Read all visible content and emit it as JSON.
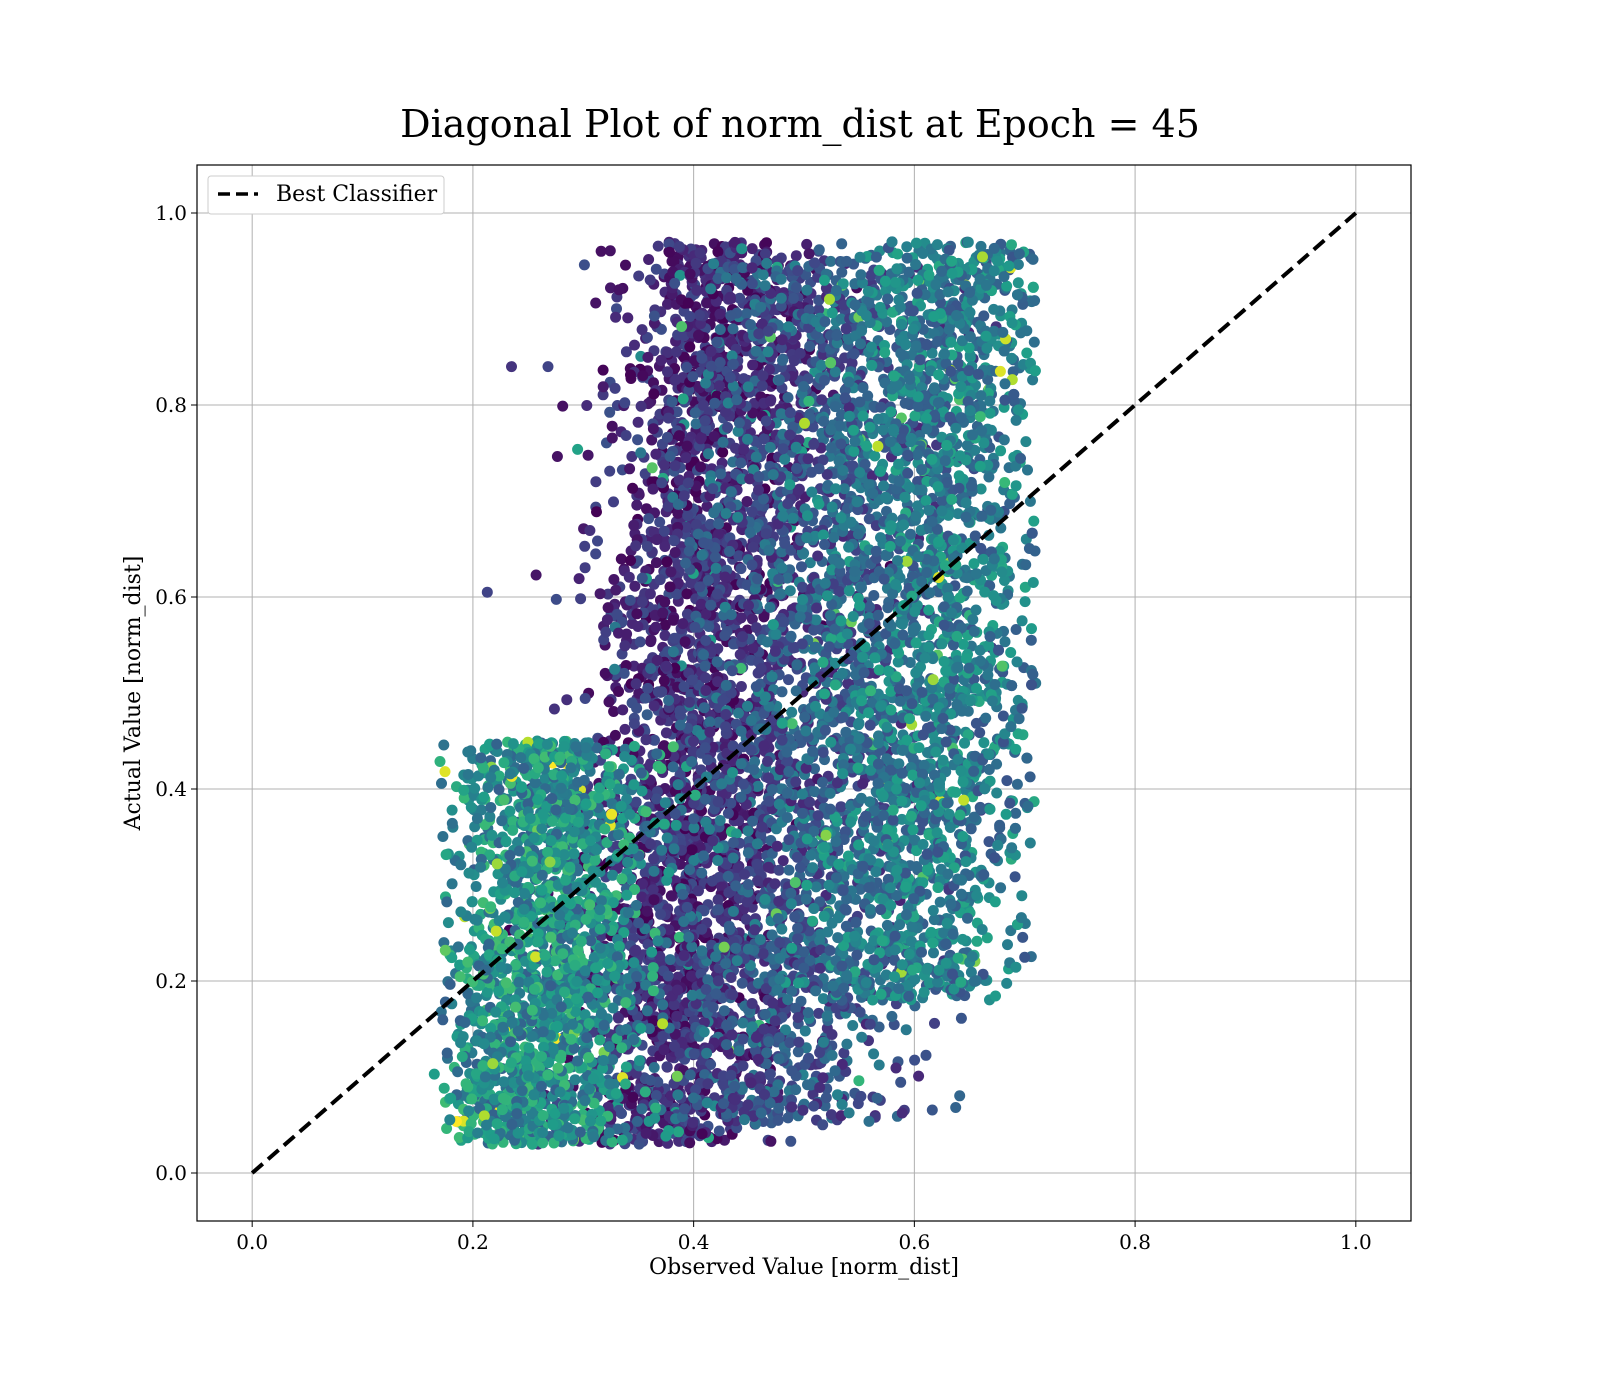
{
  "chart_data": {
    "type": "scatter",
    "title": "Diagonal Plot of norm_dist at Epoch = 45",
    "xlabel": "Observed Value [norm_dist]",
    "ylabel": "Actual Value [norm_dist]",
    "xlim": [
      -0.05,
      1.05
    ],
    "ylim": [
      -0.05,
      1.05
    ],
    "xticks": [
      "0.0",
      "0.2",
      "0.4",
      "0.6",
      "0.8",
      "1.0"
    ],
    "yticks": [
      "0.0",
      "0.2",
      "0.4",
      "0.6",
      "0.8",
      "1.0"
    ],
    "grid": true,
    "legend_position": "top-left",
    "colormap": "viridis",
    "series": [
      {
        "name": "Best Classifier",
        "kind": "line",
        "style": "dashed",
        "color": "#000000",
        "x": [
          0.0,
          1.0
        ],
        "y": [
          0.0,
          1.0
        ]
      }
    ],
    "scatter_clusters": [
      {
        "x_center": 0.4,
        "x_spread": 0.045,
        "y_range": [
          0.03,
          0.97
        ],
        "color_range": [
          0.0,
          0.25
        ],
        "weight": 0.3
      },
      {
        "x_center": 0.5,
        "x_spread": 0.06,
        "y_range": [
          0.05,
          0.95
        ],
        "color_range": [
          0.1,
          0.45
        ],
        "weight": 0.25
      },
      {
        "x_center": 0.61,
        "x_spread": 0.05,
        "y_range": [
          0.18,
          0.97
        ],
        "color_range": [
          0.25,
          0.6
        ],
        "weight": 0.25
      },
      {
        "x_center": 0.28,
        "x_spread": 0.045,
        "y_range": [
          0.03,
          0.45
        ],
        "color_range": [
          0.3,
          0.7
        ],
        "weight": 0.2
      }
    ],
    "outliers": [
      {
        "x": 0.235,
        "y": 0.84,
        "c": 0.15
      },
      {
        "x": 0.268,
        "y": 0.84,
        "c": 0.2
      },
      {
        "x": 0.213,
        "y": 0.605,
        "c": 0.2
      },
      {
        "x": 0.165,
        "y": 0.103,
        "c": 0.55
      },
      {
        "x": 0.175,
        "y": 0.232,
        "c": 0.75
      },
      {
        "x": 0.678,
        "y": 0.835,
        "c": 0.95
      },
      {
        "x": 0.688,
        "y": 0.967,
        "c": 0.6
      },
      {
        "x": 0.697,
        "y": 0.266,
        "c": 0.4
      },
      {
        "x": 0.703,
        "y": 0.382,
        "c": 0.35
      },
      {
        "x": 0.706,
        "y": 0.555,
        "c": 0.3
      },
      {
        "x": 0.595,
        "y": 0.184,
        "c": 0.3
      },
      {
        "x": 0.56,
        "y": 0.155,
        "c": 0.2
      },
      {
        "x": 0.488,
        "y": 0.033,
        "c": 0.25
      },
      {
        "x": 0.47,
        "y": 0.033,
        "c": 0.05
      },
      {
        "x": 0.567,
        "y": 0.757,
        "c": 0.9
      },
      {
        "x": 0.617,
        "y": 0.514,
        "c": 0.85
      },
      {
        "x": 0.222,
        "y": 0.322,
        "c": 0.85
      },
      {
        "x": 0.218,
        "y": 0.114,
        "c": 0.85
      }
    ]
  }
}
